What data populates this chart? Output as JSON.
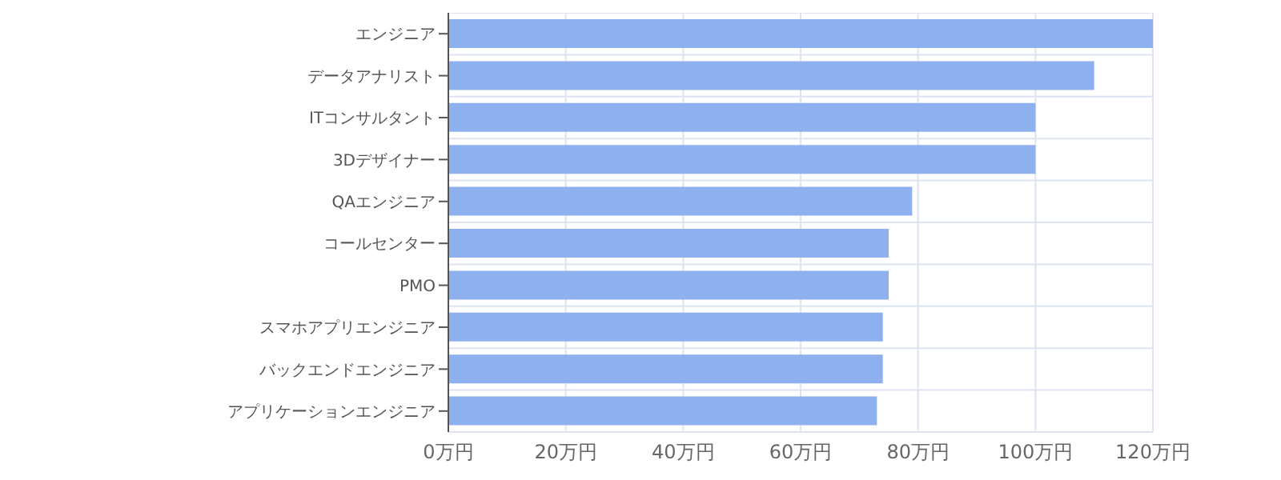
{
  "chart_data": {
    "type": "bar",
    "orientation": "horizontal",
    "categories": [
      "エンジニア",
      "データアナリスト",
      "ITコンサルタント",
      "3Dデザイナー",
      "QAエンジニア",
      "コールセンター",
      "PMO",
      "スマホアプリエンジニア",
      "バックエンドエンジニア",
      "アプリケーションエンジニア"
    ],
    "values": [
      120,
      110,
      100,
      100,
      79,
      75,
      75,
      74,
      74,
      73
    ],
    "color": "#8fb0ee",
    "xlim": [
      0,
      120
    ],
    "xticks": [
      {
        "value": 0,
        "label": "0万円"
      },
      {
        "value": 20,
        "label": "20万円"
      },
      {
        "value": 40,
        "label": "40万円"
      },
      {
        "value": 60,
        "label": "60万円"
      },
      {
        "value": 80,
        "label": "80万円"
      },
      {
        "value": 100,
        "label": "100万円"
      },
      {
        "value": 120,
        "label": "120万円"
      }
    ],
    "grid": true
  }
}
